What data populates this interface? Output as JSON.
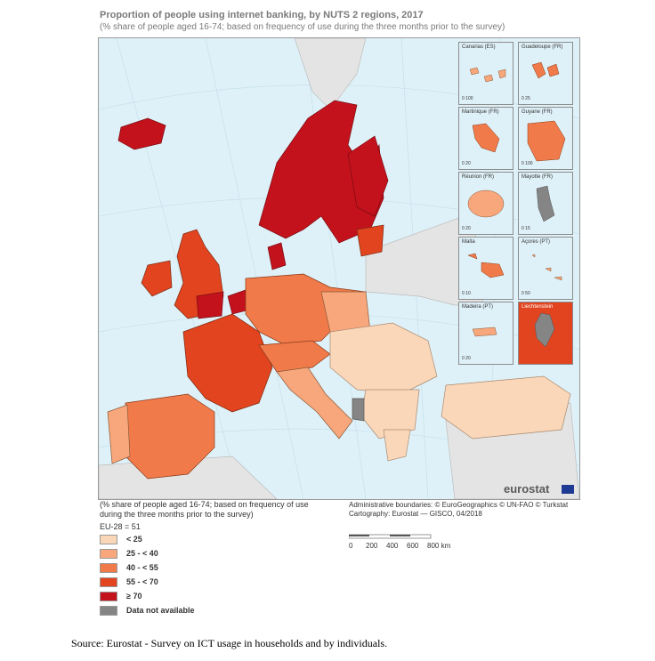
{
  "title": "Proportion of people using internet banking, by NUTS 2 regions, 2017",
  "subtitle": "(% share of people aged 16-74; based on frequency of use during the three months prior to the survey)",
  "legend": {
    "note": "(% share of people aged 16-74; based on frequency of use during the three months prior to the survey)",
    "eu_average": "EU-28 = 51",
    "classes": [
      {
        "label": "< 25",
        "color": "#fbd7b9"
      },
      {
        "label": "25 - < 40",
        "color": "#f7a77b"
      },
      {
        "label": "40 - < 55",
        "color": "#f07a4a"
      },
      {
        "label": "55 - < 70",
        "color": "#e1441f"
      },
      {
        "label": "≥ 70",
        "color": "#c4121d"
      },
      {
        "label": "Data not available",
        "color": "#858585"
      }
    ]
  },
  "credits": {
    "line1": "Administrative boundaries: © EuroGeographics © UN-FAO © Turkstat",
    "line2": "Cartography: Eurostat — GISCO, 04/2018"
  },
  "scale": {
    "labels": [
      "0",
      "200",
      "400",
      "600",
      "800 km"
    ]
  },
  "logo": "eurostat",
  "insets": [
    {
      "name": "Canarias (ES)",
      "scale": "0  100"
    },
    {
      "name": "Guadeloupe (FR)",
      "scale": "0  25"
    },
    {
      "name": "Martinique (FR)",
      "scale": "0  20"
    },
    {
      "name": "Guyane (FR)",
      "scale": "0  100"
    },
    {
      "name": "Réunion (FR)",
      "scale": "0  20"
    },
    {
      "name": "Mayotte (FR)",
      "scale": "0  15"
    },
    {
      "name": "Malta",
      "scale": "0  10"
    },
    {
      "name": "Açores (PT)",
      "scale": "0  50"
    },
    {
      "name": "Madeira (PT)",
      "scale": "0  20"
    },
    {
      "name": "Liechtenstein",
      "scale": "0  5"
    }
  ],
  "source": "Source: Eurostat - Survey on ICT usage in households and by individuals."
}
